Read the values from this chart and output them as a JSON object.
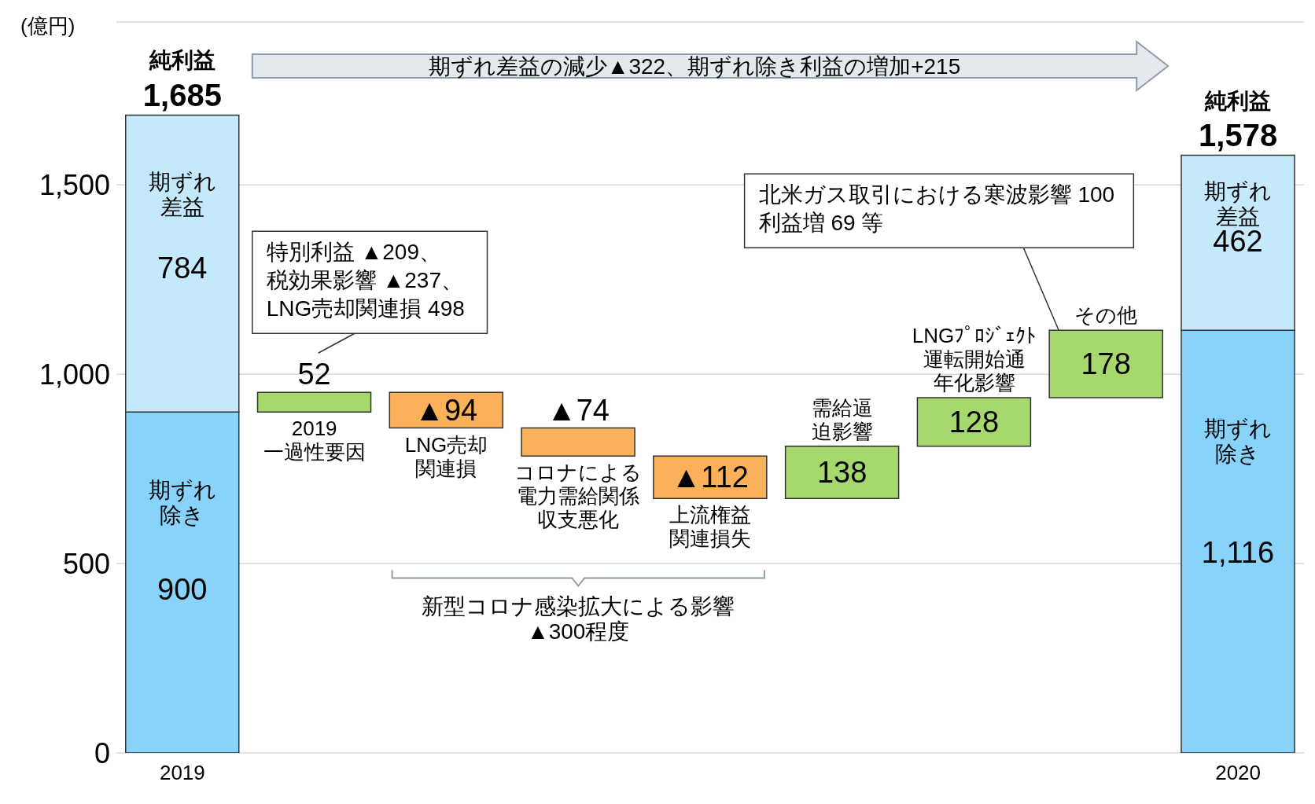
{
  "chart_data": {
    "type": "bar",
    "stacked": true,
    "ylabel": "(億円)",
    "categories": [
      "2019",
      "2019\n一過性要因",
      "LNG売却関連損",
      "コロナによる電力需給関係収支悪化",
      "上流権益関連損失",
      "需給逼迫影響",
      "LNGﾌﾟﾛｼﾞｪｸﾄ運転開始通年化影響",
      "その他",
      "2020"
    ],
    "series": [
      {
        "name": "期ずれ除き",
        "color": "#87d3f9",
        "values": [
          900,
          null,
          null,
          null,
          null,
          null,
          null,
          null,
          1116
        ],
        "value_labels": [
          "900",
          null,
          null,
          null,
          null,
          null,
          null,
          null,
          "1,116"
        ]
      },
      {
        "name": "期ずれ差益",
        "color": "#c3e9fb",
        "values": [
          784,
          null,
          null,
          null,
          null,
          null,
          null,
          null,
          462
        ],
        "value_labels": [
          "784",
          null,
          null,
          null,
          null,
          null,
          null,
          null,
          "462"
        ]
      },
      {
        "color": "#a6d86e",
        "colors": [
          null,
          "#a6d86e",
          "#fbb05a",
          "#fbb05a",
          "#fbb05a",
          "#a6d86e",
          "#a6d86e",
          "#a6d86e",
          null
        ],
        "values": [
          null,
          52,
          -94,
          -74,
          -112,
          138,
          128,
          178,
          null
        ],
        "base": [
          null,
          900,
          952,
          858,
          784,
          672,
          810,
          938,
          null
        ],
        "value_labels": [
          null,
          "52",
          "▲94",
          "▲74",
          "▲112",
          "138",
          "128",
          "178",
          null
        ]
      }
    ],
    "totals": [
      "1,685",
      null,
      null,
      null,
      null,
      null,
      null,
      null,
      "1,578"
    ],
    "ylim": [
      0,
      1930
    ],
    "yticks": [
      0,
      500,
      {
        "value": 1000,
        "label": "1,000"
      },
      {
        "value": 1500,
        "label": "1,500"
      }
    ],
    "grid": "y",
    "annotations": [
      {
        "text": "純利益",
        "x": "2019",
        "y": 1685
      },
      {
        "text": "純利益",
        "x": "2020",
        "y": 1578
      },
      "期ずれ差益の減少▲322、期ずれ除き利益の増加+215",
      "新型コロナ感染拡大による影響\n▲300程度",
      "特別利益 ▲209、税効果影響 ▲237、LNG売却関連損 498",
      "北米ガス取引における寒波影響 100\n利益増 69 等"
    ]
  }
}
